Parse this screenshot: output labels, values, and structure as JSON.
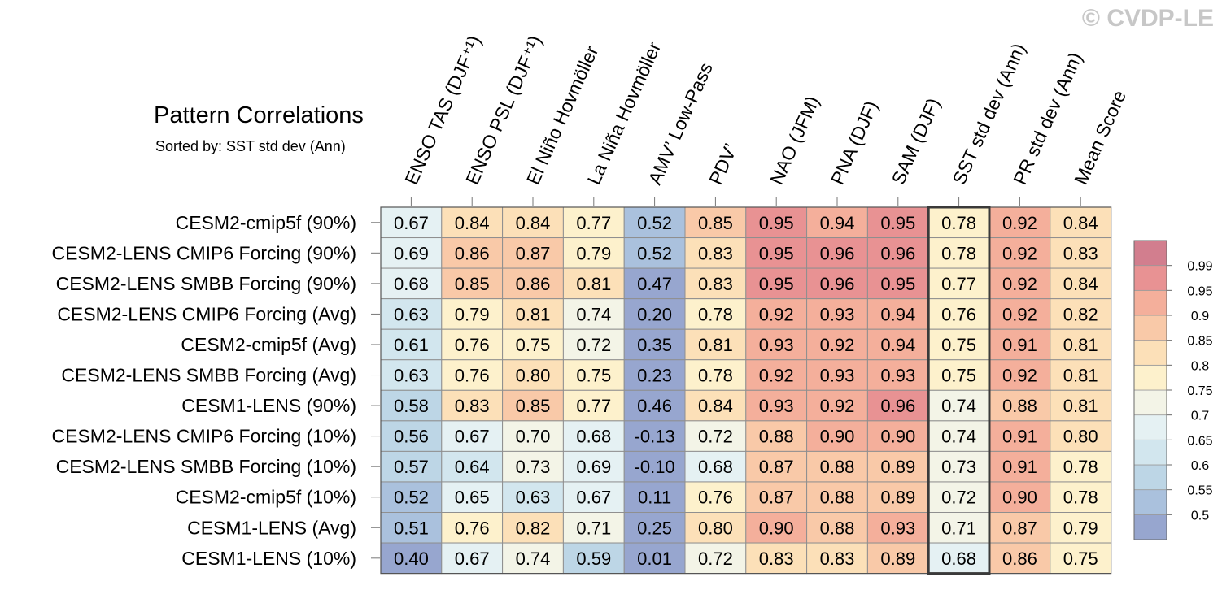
{
  "title": "Pattern Correlations",
  "subtitle": "Sorted by: SST std dev (Ann)",
  "watermark": "© CVDP-LE",
  "chart_data": {
    "type": "heatmap",
    "columns": [
      "ENSO TAS (DJF⁺¹)",
      "ENSO PSL (DJF⁺¹)",
      "El Niño Hovmöller",
      "La Niña Hovmöller",
      "AMV’ Low-Pass",
      "PDV’",
      "NAO (JFM)",
      "PNA (DJF)",
      "SAM (DJF)",
      "SST std dev (Ann)",
      "PR std dev (Ann)",
      "Mean Score"
    ],
    "rows": [
      "CESM2-cmip5f (90%)",
      "CESM2-LENS CMIP6 Forcing (90%)",
      "CESM2-LENS SMBB Forcing (90%)",
      "CESM2-LENS CMIP6 Forcing (Avg)",
      "CESM2-cmip5f (Avg)",
      "CESM2-LENS SMBB Forcing (Avg)",
      "CESM1-LENS (90%)",
      "CESM2-LENS CMIP6 Forcing (10%)",
      "CESM2-LENS SMBB Forcing (10%)",
      "CESM2-cmip5f (10%)",
      "CESM1-LENS (Avg)",
      "CESM1-LENS (10%)"
    ],
    "values": [
      [
        0.67,
        0.84,
        0.84,
        0.77,
        0.52,
        0.85,
        0.95,
        0.94,
        0.95,
        0.78,
        0.92,
        0.84
      ],
      [
        0.69,
        0.86,
        0.87,
        0.79,
        0.52,
        0.83,
        0.95,
        0.96,
        0.96,
        0.78,
        0.92,
        0.83
      ],
      [
        0.68,
        0.85,
        0.86,
        0.81,
        0.47,
        0.83,
        0.95,
        0.96,
        0.95,
        0.77,
        0.92,
        0.84
      ],
      [
        0.63,
        0.79,
        0.81,
        0.74,
        0.2,
        0.78,
        0.92,
        0.93,
        0.94,
        0.76,
        0.92,
        0.82
      ],
      [
        0.61,
        0.76,
        0.75,
        0.72,
        0.35,
        0.81,
        0.93,
        0.92,
        0.94,
        0.75,
        0.91,
        0.81
      ],
      [
        0.63,
        0.76,
        0.8,
        0.75,
        0.23,
        0.78,
        0.92,
        0.93,
        0.93,
        0.75,
        0.92,
        0.81
      ],
      [
        0.58,
        0.83,
        0.85,
        0.77,
        0.46,
        0.84,
        0.93,
        0.92,
        0.96,
        0.74,
        0.88,
        0.81
      ],
      [
        0.56,
        0.67,
        0.7,
        0.68,
        -0.13,
        0.72,
        0.88,
        0.9,
        0.9,
        0.74,
        0.91,
        0.8
      ],
      [
        0.57,
        0.64,
        0.73,
        0.69,
        -0.1,
        0.68,
        0.87,
        0.88,
        0.89,
        0.73,
        0.91,
        0.78
      ],
      [
        0.52,
        0.65,
        0.63,
        0.67,
        0.11,
        0.76,
        0.87,
        0.88,
        0.89,
        0.72,
        0.9,
        0.78
      ],
      [
        0.51,
        0.76,
        0.82,
        0.71,
        0.25,
        0.8,
        0.9,
        0.88,
        0.93,
        0.71,
        0.87,
        0.79
      ],
      [
        0.4,
        0.67,
        0.74,
        0.59,
        0.01,
        0.72,
        0.83,
        0.83,
        0.89,
        0.68,
        0.86,
        0.75
      ]
    ],
    "highlight_column": "SST std dev (Ann)",
    "colorbar": {
      "levels": [
        0.5,
        0.55,
        0.6,
        0.65,
        0.7,
        0.75,
        0.8,
        0.85,
        0.9,
        0.95,
        0.99
      ],
      "labels": [
        "0.5",
        "0.55",
        "0.6",
        "0.65",
        "0.7",
        "0.75",
        "0.8",
        "0.85",
        "0.9",
        "0.95",
        "0.99"
      ],
      "colors": [
        "#97a6cf",
        "#aac1dd",
        "#bdd6e6",
        "#d2e6ee",
        "#e5f1f3",
        "#f3f4e7",
        "#fdf1cc",
        "#fce0b8",
        "#f9c9a8",
        "#f4af9b",
        "#e89293",
        "#d27e8e"
      ]
    }
  }
}
